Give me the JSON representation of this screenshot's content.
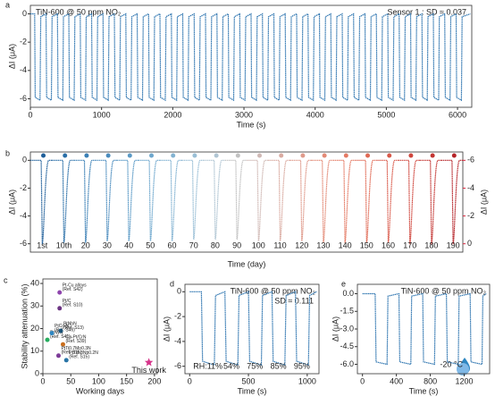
{
  "chart_data": [
    {
      "type": "line",
      "label": "a",
      "title": "TiN-600 @ 50 ppm NO₂",
      "annotation": "Sensor 1 : SD ≈ 0.037",
      "xlabel": "Time (s)",
      "ylabel": "ΔI (μA)",
      "xlim": [
        0,
        6200
      ],
      "xticks": [
        0,
        1000,
        2000,
        3000,
        4000,
        5000,
        6000
      ],
      "ylim": [
        -6.6,
        0.6
      ],
      "yticks": [
        0,
        -2,
        -4,
        -6
      ],
      "series": [
        {
          "color": "#2e75b0",
          "x": [
            0,
            60,
            68,
            135,
            145,
            220,
            228,
            295,
            305,
            380,
            388,
            455,
            465,
            540,
            548,
            615,
            625,
            700,
            708,
            775,
            785,
            860,
            868,
            935,
            945,
            1020,
            1028,
            1095,
            1105,
            1180,
            1188,
            1255,
            1265,
            1340,
            1348,
            1415,
            1425,
            1500,
            1508,
            1575,
            1585,
            1660,
            1668,
            1735,
            1745,
            1820,
            1828,
            1895,
            1905,
            1980,
            1988,
            2055,
            2065,
            2140,
            2148,
            2215,
            2225,
            2300,
            2308,
            2375,
            2385,
            2460,
            2468,
            2535,
            2545,
            2620,
            2628,
            2695,
            2705,
            2780,
            2788,
            2855,
            2865,
            2940,
            2948,
            3015,
            3025,
            3100,
            3108,
            3175,
            3185,
            3260,
            3268,
            3335,
            3345,
            3420,
            3428,
            3495,
            3505,
            3580,
            3588,
            3655,
            3665,
            3740,
            3748,
            3815,
            3825,
            3900,
            3908,
            3975,
            3985,
            4060,
            4068,
            4135,
            4145,
            4220,
            4228,
            4295,
            4305,
            4380,
            4388,
            4455,
            4465,
            4540,
            4548,
            4615,
            4625,
            4700,
            4708,
            4775,
            4785,
            4860,
            4868,
            4935,
            4945,
            5020,
            5028,
            5095,
            5105,
            5180,
            5188,
            5255,
            5265,
            5340,
            5348,
            5415,
            5425,
            5500,
            5508,
            5575,
            5585,
            5660,
            5668,
            5735,
            5745,
            5820,
            5828,
            5895,
            5905,
            5980,
            5988,
            6055,
            6065,
            6180
          ],
          "values": [
            0,
            0,
            -5.9,
            -6.1,
            -0.2,
            0,
            -5.9,
            -6.1,
            -0.2,
            0,
            -5.9,
            -6.1,
            -0.2,
            0,
            -5.9,
            -6.1,
            -0.2,
            0,
            -5.9,
            -6.1,
            -0.2,
            0,
            -5.9,
            -6.1,
            -0.2,
            0,
            -5.9,
            -6.1,
            -0.2,
            0,
            -5.9,
            -6.1,
            -0.2,
            0,
            -5.9,
            -6.1,
            -0.2,
            0,
            -5.9,
            -6.1,
            -0.2,
            0,
            -5.9,
            -6.1,
            -0.2,
            0,
            -5.9,
            -6.1,
            -0.2,
            0,
            -5.9,
            -6.1,
            -0.2,
            0,
            -5.9,
            -6.1,
            -0.2,
            0,
            -5.9,
            -6.1,
            -0.2,
            0,
            -5.9,
            -6.1,
            -0.2,
            0,
            -5.9,
            -6.1,
            -0.2,
            0,
            -5.9,
            -6.1,
            -0.2,
            0,
            -5.9,
            -6.1,
            -0.2,
            0,
            -5.9,
            -6.1,
            -0.2,
            0,
            -5.9,
            -6.1,
            -0.2,
            0,
            -5.9,
            -6.1,
            -0.2,
            0,
            -5.9,
            -6.1,
            -0.2,
            0,
            -5.9,
            -6.1,
            -0.2,
            0,
            -5.9,
            -6.1,
            -0.2,
            0,
            -5.9,
            -6.1,
            -0.2,
            0,
            -5.9,
            -6.1,
            -0.2,
            0,
            -5.9,
            -6.1,
            -0.2,
            0,
            -5.9,
            -6.1,
            -0.2,
            0,
            -5.9,
            -6.1,
            -0.2,
            0,
            -5.9,
            -6.1,
            -0.2,
            0,
            -5.9,
            -6.1,
            -0.2,
            0,
            -5.9,
            -6.1,
            -0.2,
            0,
            -5.9,
            -6.1,
            -0.2,
            0,
            -5.9,
            -6.1,
            -0.2,
            0,
            -5.9,
            -6.1,
            -0.2,
            0,
            -5.9,
            -6.1,
            -0.2,
            0,
            -5.9,
            -6.1,
            -0.2,
            0
          ]
        }
      ]
    },
    {
      "type": "pulse",
      "label": "b",
      "xlabel": "Time (day)",
      "ylabel": "ΔI (μA)",
      "y2label": "ΔI (μA)",
      "y2color": "#d7263d",
      "ylim": [
        -6.6,
        0.6
      ],
      "yticks": [
        0,
        -2,
        -4,
        -6
      ],
      "y2lim": [
        0.6,
        -6.6
      ],
      "y2ticks": [
        -6,
        -4,
        -2,
        0
      ],
      "categories": [
        "1st",
        "10th",
        "20",
        "30",
        "40",
        "50",
        "60",
        "70",
        "80",
        "90",
        "100",
        "110",
        "120",
        "130",
        "140",
        "150",
        "160",
        "170",
        "180",
        "190"
      ],
      "colors": [
        "#1f5f9a",
        "#2a6fa8",
        "#3a7fb5",
        "#4b8cbe",
        "#5b9ac6",
        "#6ea7cd",
        "#83b3d2",
        "#9abfd6",
        "#b0c5d3",
        "#c2c2c2",
        "#d0b9b5",
        "#d9aaa0",
        "#df9a8b",
        "#e38a76",
        "#e47a64",
        "#e06a55",
        "#d95849",
        "#cf453c",
        "#c33431",
        "#b52328"
      ],
      "values": [
        -6.0,
        -5.9,
        -5.9,
        -5.8,
        -5.8,
        -5.8,
        -5.8,
        -5.7,
        -5.7,
        -5.7,
        -5.8,
        -5.8,
        -5.8,
        -5.9,
        -5.9,
        -5.9,
        -5.9,
        -6.0,
        -6.0,
        -6.0
      ]
    },
    {
      "type": "scatter",
      "label": "c",
      "xlabel": "Working days",
      "ylabel": "Stability attenuation (%)",
      "xlim": [
        0,
        205
      ],
      "xticks": [
        0,
        50,
        100,
        150,
        200
      ],
      "ylim": [
        0,
        42
      ],
      "yticks": [
        0,
        10,
        20,
        30,
        40
      ],
      "series": [
        {
          "name": "Pt-Cu alloys",
          "ref": "(Ref. S42)",
          "color": "#8e44ad",
          "x": [
            30
          ],
          "values": [
            36
          ]
        },
        {
          "name": "Pt/C",
          "ref": "(Ref. S10)",
          "color": "#6c3483",
          "x": [
            30
          ],
          "values": [
            29
          ]
        },
        {
          "name": "Pt/WN",
          "ref": "(Ref. S41)",
          "color": "#27ae60",
          "x": [
            8
          ],
          "values": [
            15
          ]
        },
        {
          "name": "PtCo/N",
          "ref": "(Ref. S46)",
          "color": "#2e86c1",
          "x": [
            16
          ],
          "values": [
            18
          ]
        },
        {
          "name": "PtNbN",
          "ref": "(Ref. S13)",
          "color": "#1a5276",
          "x": [
            32
          ],
          "values": [
            19
          ]
        },
        {
          "name": "Cu-Pt/CrN",
          "ref": "(Ref. S39)",
          "color": "#ca6f1e",
          "x": [
            36
          ],
          "values": [
            13
          ]
        },
        {
          "name": "PtTi0.7Mo0.3N",
          "ref": "(Ref. S16)",
          "color": "#7d3c98",
          "x": [
            28
          ],
          "values": [
            8
          ]
        },
        {
          "name": "PtTi0.8Nb0.2N",
          "ref": "(Ref. S15)",
          "color": "#2874a6",
          "x": [
            42
          ],
          "values": [
            6
          ]
        },
        {
          "name": "This work",
          "color": "#d6338a",
          "x": [
            190
          ],
          "values": [
            5
          ]
        }
      ]
    },
    {
      "type": "line",
      "label": "d",
      "title": "TiN-600 @ 50 ppm NO₂",
      "annotation": "SD ≈ 0.111",
      "annotation_color": "#d7263d",
      "pulse_labels": [
        "RH:11%",
        "54%",
        "75%",
        "85%",
        "95%"
      ],
      "pulse_label_color": "#c0392b",
      "xlabel": "Time (s)",
      "ylabel": "ΔI (μA)",
      "xlim": [
        -40,
        1100
      ],
      "xticks": [
        0,
        500,
        1000
      ],
      "ylim": [
        -6.6,
        0.6
      ],
      "yticks": [
        0,
        -2,
        -4,
        -6
      ],
      "series": [
        {
          "color": "#2e75b0",
          "x": [
            0,
            100,
            110,
            210,
            220,
            300,
            310,
            410,
            420,
            500,
            510,
            610,
            620,
            700,
            710,
            810,
            820,
            900,
            910,
            1010,
            1020,
            1080
          ],
          "values": [
            0,
            0,
            -5.6,
            -5.9,
            -0.3,
            0,
            -5.6,
            -5.9,
            -0.3,
            0,
            -5.6,
            -5.9,
            -0.3,
            0,
            -5.6,
            -5.9,
            -0.3,
            0,
            -5.6,
            -5.9,
            -0.3,
            0
          ]
        }
      ]
    },
    {
      "type": "line",
      "label": "e",
      "title": "TiN-600 @ 50 ppm NO₂",
      "annotation": "-20 °C",
      "xlabel": "Time (s)",
      "ylabel": "ΔI (μA)",
      "xlim": [
        -60,
        1500
      ],
      "xticks": [
        0,
        400,
        800,
        1200
      ],
      "ylim": [
        -6.8,
        0.8
      ],
      "yticks": [
        {
          "value": 0,
          "label": "0.0"
        },
        -1.5,
        {
          "value": -3,
          "label": "-3.0"
        },
        -4.5,
        {
          "value": -6,
          "label": "-6.0"
        }
      ],
      "series": [
        {
          "color": "#2e75b0",
          "x": [
            0,
            150,
            160,
            290,
            300,
            430,
            440,
            570,
            580,
            710,
            720,
            850,
            860,
            990,
            1000,
            1130,
            1140,
            1270,
            1280,
            1410,
            1420,
            1460
          ],
          "values": [
            0,
            0,
            -5.8,
            -6.0,
            -0.2,
            0,
            -5.8,
            -6.0,
            -0.2,
            0,
            -5.8,
            -6.0,
            -0.2,
            0,
            -5.8,
            -6.0,
            -0.2,
            0,
            -5.8,
            -6.0,
            -0.2,
            0
          ]
        }
      ]
    }
  ]
}
